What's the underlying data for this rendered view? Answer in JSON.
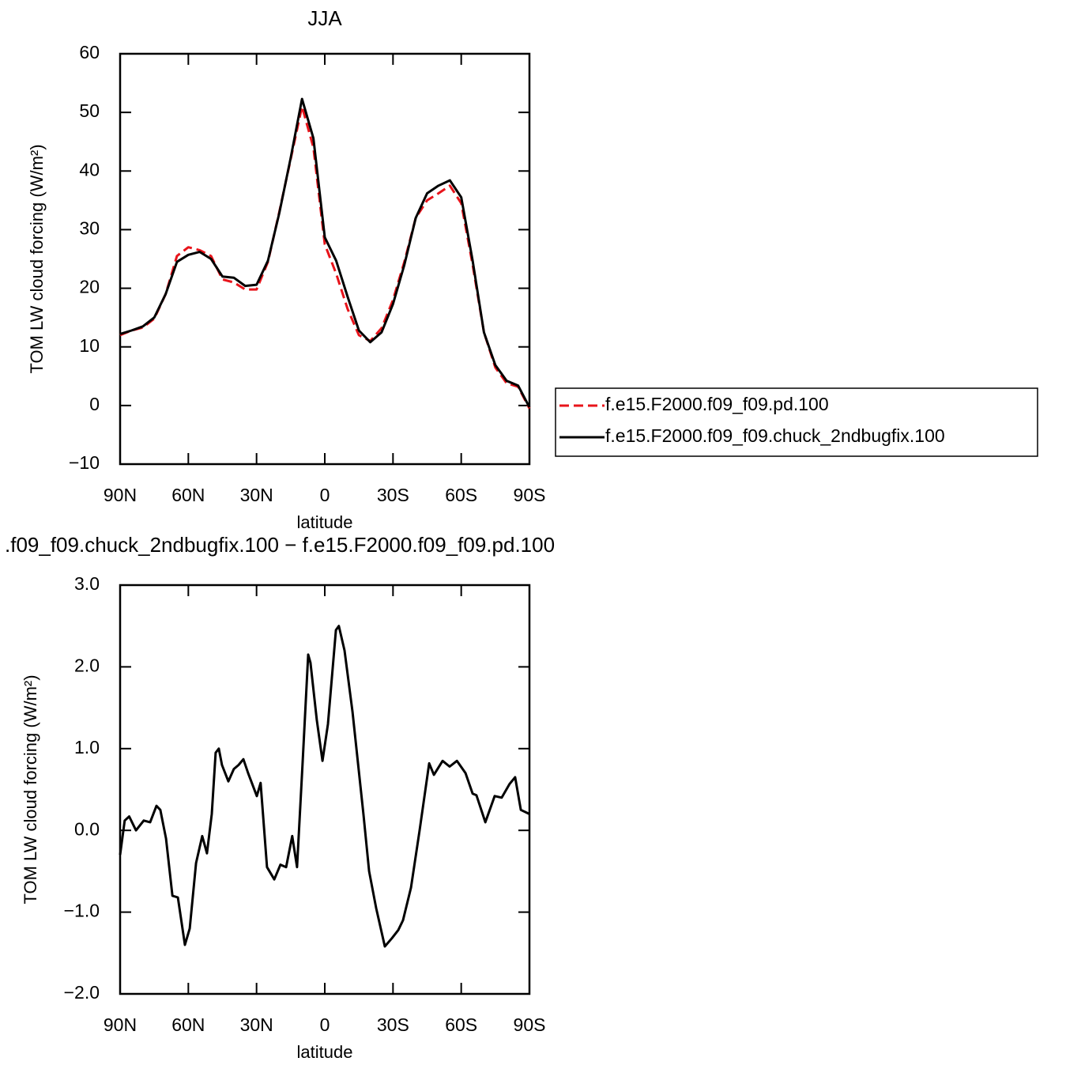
{
  "chart_data": [
    {
      "type": "line",
      "title": "JJA",
      "xlabel": "latitude",
      "ylabel": "TOM LW cloud forcing (W/m²)",
      "x": [
        90,
        85,
        80,
        75,
        70,
        65,
        60,
        55,
        50,
        45,
        40,
        35,
        30,
        25,
        20,
        15,
        10,
        5,
        0,
        -5,
        -10,
        -15,
        -20,
        -25,
        -30,
        -35,
        -40,
        -45,
        -50,
        -55,
        -60,
        -65,
        -70,
        -75,
        -80,
        -85,
        -90
      ],
      "series": [
        {
          "name": "f.e15.F2000.f09_f09.pd.100",
          "color": "#e8141b",
          "dash": true,
          "values": [
            12,
            12.8,
            13.3,
            14.8,
            19,
            25.5,
            27,
            26.5,
            25.5,
            21.5,
            21,
            19.8,
            19.8,
            24.5,
            33,
            42,
            51,
            44,
            27.5,
            22.5,
            16.5,
            12,
            11,
            13.2,
            18,
            24.5,
            32,
            35,
            36.2,
            37.5,
            34.5,
            24,
            12.5,
            6.5,
            3.8,
            3.2,
            -0.5
          ]
        },
        {
          "name": "f.e15.F2000.f09_f09.chuck_2ndbugfix.100",
          "color": "#000000",
          "dash": false,
          "values": [
            12.2,
            12.8,
            13.5,
            15,
            19,
            24.5,
            25.7,
            26.2,
            25,
            22,
            21.8,
            20.4,
            20.6,
            24.7,
            32.8,
            42.2,
            52.3,
            45.6,
            28.7,
            24.7,
            18.6,
            12.8,
            10.8,
            12.5,
            17.3,
            24,
            32,
            36.2,
            37.5,
            38.4,
            35.5,
            24.7,
            12.5,
            6.9,
            4.2,
            3.4,
            -0.3
          ]
        }
      ],
      "xlim": [
        90,
        -90
      ],
      "xticks": [
        {
          "value": 90,
          "label": "90N"
        },
        {
          "value": 60,
          "label": "60N"
        },
        {
          "value": 30,
          "label": "30N"
        },
        0,
        {
          "value": -30,
          "label": "30S"
        },
        {
          "value": -60,
          "label": "60S"
        },
        {
          "value": -90,
          "label": "90S"
        }
      ],
      "ylim": [
        -10,
        60
      ],
      "yticks": [
        {
          "value": -10,
          "label": "−10"
        },
        0,
        10,
        20,
        30,
        40,
        50,
        60
      ],
      "legend": "outside-right"
    },
    {
      "type": "line",
      "title": ".f09_f09.chuck_2ndbugfix.100 − f.e15.F2000.f09_f09.pd.100",
      "xlabel": "latitude",
      "ylabel": "TOM LW cloud forcing (W/m²)",
      "x": [
        90,
        88,
        86,
        83,
        79.6,
        76.8,
        74,
        72.3,
        69.8,
        67,
        64.6,
        61.5,
        59.4,
        56.6,
        53.9,
        51.8,
        49.7,
        48,
        46.6,
        45.2,
        42.4,
        40,
        37.9,
        35.8,
        33.7,
        29.9,
        28.2,
        25.4,
        22.2,
        19.5,
        17,
        14.3,
        12.2,
        9.8,
        7.3,
        6.3,
        3.5,
        1,
        -1.4,
        -4.9,
        -6.2,
        -8.7,
        -12.2,
        -17,
        -19.5,
        -22.6,
        -26.4,
        -29.5,
        -32.3,
        -34.4,
        -37.9,
        -41.7,
        -45.9,
        -48,
        -51.8,
        -54.9,
        -58.1,
        -61.9,
        -65,
        -66.7,
        -70.6,
        -74.7,
        -77.8,
        -81.3,
        -83.7,
        -86.2,
        -90
      ],
      "series": [
        {
          "color": "#000000",
          "dash": false,
          "values": [
            -0.3,
            0.12,
            0.17,
            0,
            0.12,
            0.1,
            0.3,
            0.25,
            -0.1,
            -0.8,
            -0.82,
            -1.4,
            -1.2,
            -0.4,
            -0.07,
            -0.28,
            0.2,
            0.95,
            1,
            0.8,
            0.6,
            0.75,
            0.8,
            0.87,
            0.7,
            0.42,
            0.58,
            -0.45,
            -0.6,
            -0.42,
            -0.45,
            -0.07,
            -0.45,
            0.8,
            2.15,
            2.05,
            1.35,
            0.85,
            1.3,
            2.45,
            2.5,
            2.2,
            1.45,
            0.2,
            -0.5,
            -0.95,
            -1.42,
            -1.32,
            -1.22,
            -1.1,
            -0.7,
            0,
            0.82,
            0.68,
            0.85,
            0.78,
            0.85,
            0.7,
            0.45,
            0.43,
            0.1,
            0.42,
            0.4,
            0.57,
            0.65,
            0.25,
            0.2
          ]
        }
      ],
      "xlim": [
        90,
        -90
      ],
      "xticks": [
        {
          "value": 90,
          "label": "90N"
        },
        {
          "value": 60,
          "label": "60N"
        },
        {
          "value": 30,
          "label": "30N"
        },
        0,
        {
          "value": -30,
          "label": "30S"
        },
        {
          "value": -60,
          "label": "60S"
        },
        {
          "value": -90,
          "label": "90S"
        }
      ],
      "ylim": [
        -2,
        3
      ],
      "yticks": [
        {
          "value": -2,
          "label": "−2.0"
        },
        {
          "value": -1,
          "label": "−1.0"
        },
        {
          "value": 0,
          "label": "0.0"
        },
        {
          "value": 1,
          "label": "1.0"
        },
        {
          "value": 2,
          "label": "2.0"
        },
        {
          "value": 3,
          "label": "3.0"
        }
      ]
    }
  ]
}
